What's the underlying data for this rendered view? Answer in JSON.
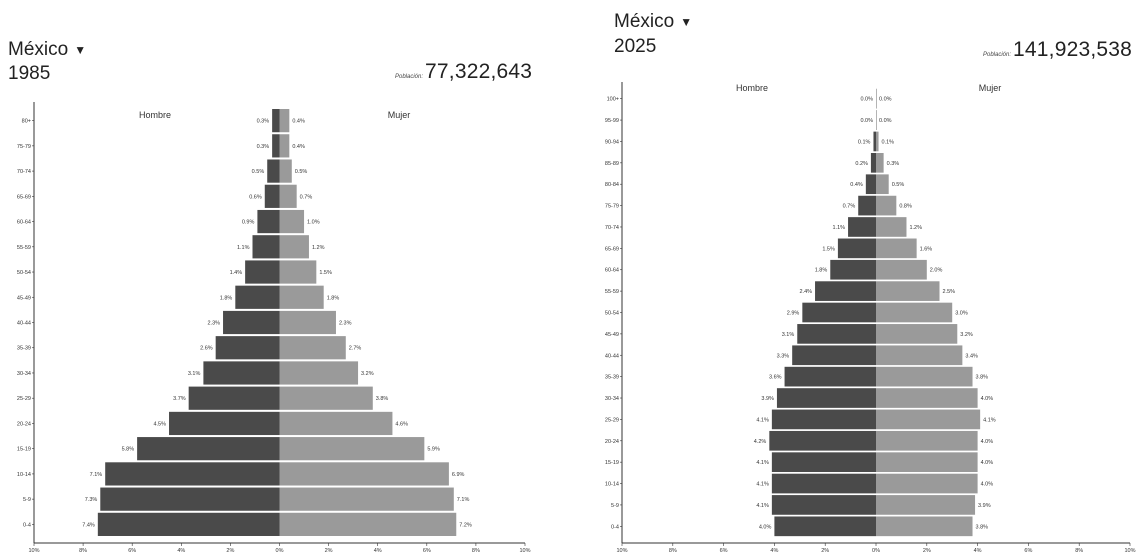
{
  "panels": [
    {
      "country": "México",
      "year": "1985",
      "population_label": "Población:",
      "population": "77,322,643"
    },
    {
      "country": "México",
      "year": "2025",
      "population_label": "Población:",
      "population": "141,923,538"
    }
  ],
  "colors": {
    "male": "#4a4a4a",
    "female": "#9a9a9a",
    "axis": "#333333"
  },
  "icons": {
    "caret": "caret-down-icon"
  },
  "chart_data": [
    {
      "type": "bar",
      "subtype": "population-pyramid",
      "title": "México 1985",
      "left_label": "Hombre",
      "right_label": "Mujer",
      "categories": [
        "0-4",
        "5-9",
        "10-14",
        "15-19",
        "20-24",
        "25-29",
        "30-34",
        "35-39",
        "40-44",
        "45-49",
        "50-54",
        "55-59",
        "60-64",
        "65-69",
        "70-74",
        "75-79",
        "80+"
      ],
      "category_labels": [
        "0-4",
        "5-9",
        "10-14",
        "15-19",
        "20-24",
        "25-29",
        "30-34",
        "35-39",
        "40-44",
        "45-49",
        "50-54",
        "55-59",
        "60-64",
        "65-69",
        "70-74",
        "75-79",
        "80+"
      ],
      "series": [
        {
          "name": "Hombre",
          "values": [
            7.4,
            7.3,
            7.1,
            5.8,
            4.5,
            3.7,
            3.1,
            2.6,
            2.3,
            1.8,
            1.4,
            1.1,
            0.9,
            0.6,
            0.5,
            0.3,
            0.3
          ]
        },
        {
          "name": "Mujer",
          "values": [
            7.2,
            7.1,
            6.9,
            5.9,
            4.6,
            3.8,
            3.2,
            2.7,
            2.3,
            1.8,
            1.5,
            1.2,
            1.0,
            0.7,
            0.5,
            0.4,
            0.4
          ]
        }
      ],
      "value_labels": {
        "Hombre": [
          "7.4%",
          "7.3%",
          "7.1%",
          "5.8%",
          "4.5%",
          "3.7%",
          "3.1%",
          "2.6%",
          "2.3%",
          "1.8%",
          "1.4%",
          "1.1%",
          "0.9%",
          "0.6%",
          "0.5%",
          "0.3%",
          "0.3%"
        ],
        "Mujer": [
          "7.2%",
          "7.1%",
          "6.9%",
          "5.9%",
          "4.6%",
          "3.8%",
          "3.2%",
          "2.7%",
          "2.3%",
          "1.8%",
          "1.5%",
          "1.2%",
          "1.0%",
          "0.7%",
          "0.5%",
          "0.4%",
          "0.4%"
        ]
      },
      "xlim": [
        -10,
        10
      ],
      "xticks": [
        -10,
        -8,
        -6,
        -4,
        -2,
        0,
        2,
        4,
        6,
        8,
        10
      ],
      "xtick_labels": [
        "10%",
        "8%",
        "6%",
        "4%",
        "2%",
        "0%",
        "2%",
        "4%",
        "6%",
        "8%",
        "10%"
      ]
    },
    {
      "type": "bar",
      "subtype": "population-pyramid",
      "title": "México 2025",
      "left_label": "Hombre",
      "right_label": "Mujer",
      "categories": [
        "0-4",
        "5-9",
        "10-14",
        "15-19",
        "20-24",
        "25-29",
        "30-34",
        "35-39",
        "40-44",
        "45-49",
        "50-54",
        "55-59",
        "60-64",
        "65-69",
        "70-74",
        "75-79",
        "80-84",
        "85-89",
        "90-94",
        "95-99",
        "100+"
      ],
      "category_labels": [
        "0-4",
        "5-9",
        "10-14",
        "15-19",
        "20-24",
        "25-29",
        "30-34",
        "35-39",
        "40-44",
        "45-49",
        "50-54",
        "55-59",
        "60-64",
        "65-69",
        "70-74",
        "75-79",
        "80-84",
        "85-89",
        "90-94",
        "95-99",
        "100+"
      ],
      "series": [
        {
          "name": "Hombre",
          "values": [
            4.0,
            4.1,
            4.1,
            4.1,
            4.2,
            4.1,
            3.9,
            3.6,
            3.3,
            3.1,
            2.9,
            2.4,
            1.8,
            1.5,
            1.1,
            0.7,
            0.4,
            0.2,
            0.1,
            0.0,
            0.0
          ]
        },
        {
          "name": "Mujer",
          "values": [
            3.8,
            3.9,
            4.0,
            4.0,
            4.0,
            4.1,
            4.0,
            3.8,
            3.4,
            3.2,
            3.0,
            2.5,
            2.0,
            1.6,
            1.2,
            0.8,
            0.5,
            0.3,
            0.1,
            0.0,
            0.0
          ]
        }
      ],
      "value_labels": {
        "Hombre": [
          "4.0%",
          "4.1%",
          "4.1%",
          "4.1%",
          "4.2%",
          "4.1%",
          "3.9%",
          "3.6%",
          "3.3%",
          "3.1%",
          "2.9%",
          "2.4%",
          "1.8%",
          "1.5%",
          "1.1%",
          "0.7%",
          "0.4%",
          "0.2%",
          "0.1%",
          "0.0%",
          "0.0%"
        ],
        "Mujer": [
          "3.8%",
          "3.9%",
          "4.0%",
          "4.0%",
          "4.0%",
          "4.1%",
          "4.0%",
          "3.8%",
          "3.4%",
          "3.2%",
          "3.0%",
          "2.5%",
          "2.0%",
          "1.6%",
          "1.2%",
          "0.8%",
          "0.5%",
          "0.3%",
          "0.1%",
          "0.0%",
          "0.0%"
        ]
      },
      "xlim": [
        -10,
        10
      ],
      "xticks": [
        -10,
        -8,
        -6,
        -4,
        -2,
        0,
        2,
        4,
        6,
        8,
        10
      ],
      "xtick_labels": [
        "10%",
        "8%",
        "6%",
        "4%",
        "2%",
        "0%",
        "2%",
        "4%",
        "6%",
        "8%",
        "10%"
      ]
    }
  ]
}
